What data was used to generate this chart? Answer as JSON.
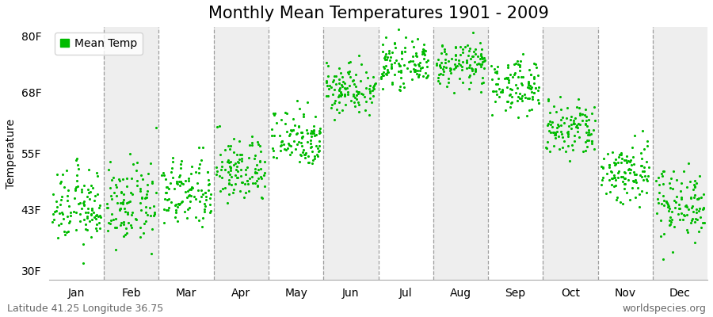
{
  "title": "Monthly Mean Temperatures 1901 - 2009",
  "ylabel": "Temperature",
  "ytick_labels": [
    "30F",
    "43F",
    "55F",
    "68F",
    "80F"
  ],
  "ytick_values": [
    30,
    43,
    55,
    68,
    80
  ],
  "ylim": [
    28,
    82
  ],
  "months": [
    "Jan",
    "Feb",
    "Mar",
    "Apr",
    "May",
    "Jun",
    "Jul",
    "Aug",
    "Sep",
    "Oct",
    "Nov",
    "Dec"
  ],
  "mean_temps_F": [
    43.5,
    44.0,
    46.5,
    51.5,
    58.5,
    69.0,
    74.0,
    74.0,
    69.5,
    60.0,
    51.0,
    44.5
  ],
  "std_temps_F": [
    4.0,
    4.2,
    3.8,
    3.5,
    3.2,
    2.8,
    2.2,
    2.3,
    2.8,
    3.2,
    3.5,
    3.8
  ],
  "n_years": 109,
  "dot_color": "#00BB00",
  "dot_size": 5,
  "band_color_odd": "#FFFFFF",
  "band_color_even": "#EEEEEE",
  "dashed_line_color": "#888888",
  "title_fontsize": 15,
  "axis_label_fontsize": 10,
  "tick_fontsize": 10,
  "legend_label": "Mean Temp",
  "footer_left": "Latitude 41.25 Longitude 36.75",
  "footer_right": "worldspecies.org",
  "footer_fontsize": 9,
  "figure_bg": "#FFFFFF"
}
